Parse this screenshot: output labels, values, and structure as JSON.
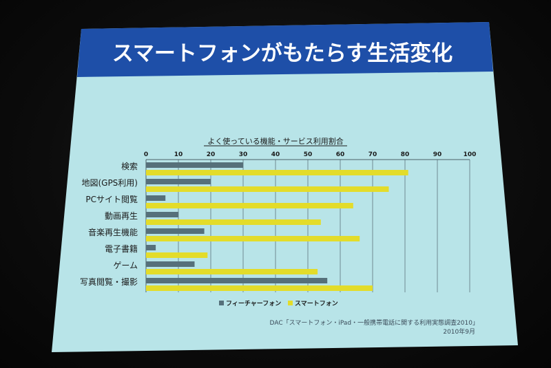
{
  "slide": {
    "title": "スマートフォンがもたらす生活変化",
    "source_line1": "DAC「スマートフォン・iPad・一般携帯電話に関する利用実態調査2010」",
    "source_line2": "2010年9月"
  },
  "colors": {
    "title_bar": "#1e4fa8",
    "slide_bg": "#b9e6ea",
    "feature_phone": "#56707a",
    "smartphone": "#e3dc2a"
  },
  "chart_data": {
    "type": "bar",
    "orientation": "horizontal",
    "title": "よく使っている機能・サービス利用割合",
    "categories": [
      "検索",
      "地図(GPS利用)",
      "PCサイト閲覧",
      "動画再生",
      "音楽再生機能",
      "電子書籍",
      "ゲーム",
      "写真閲覧・撮影"
    ],
    "series": [
      {
        "name": "フィーチャーフォン",
        "values": [
          30,
          20,
          6,
          10,
          18,
          3,
          15,
          56
        ]
      },
      {
        "name": "スマートフォン",
        "values": [
          81,
          75,
          64,
          54,
          66,
          19,
          53,
          70
        ]
      }
    ],
    "x_ticks": [
      "0",
      "10",
      "20",
      "30",
      "40",
      "50",
      "60",
      "70",
      "80",
      "90",
      "100"
    ],
    "xlim": [
      0,
      100
    ],
    "x_axis_position": "top",
    "grid": true,
    "legend_position": "bottom"
  }
}
